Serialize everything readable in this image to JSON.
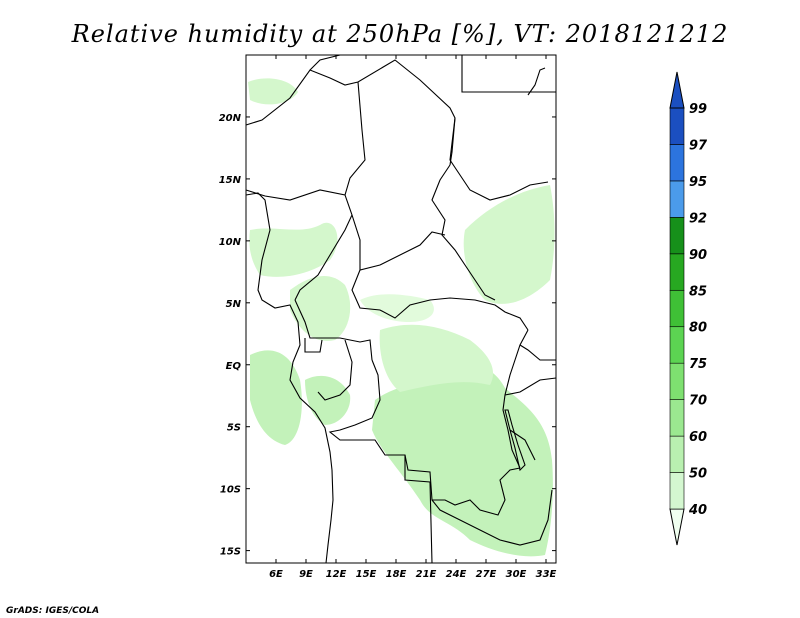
{
  "title": "Relative humidity at 250hPa [%], VT: 2018121212",
  "credit": "GrADS: IGES/COLA",
  "map": {
    "lon_range": [
      3,
      34
    ],
    "lat_range": [
      -16,
      25
    ],
    "lon_ticks": [
      "6E",
      "9E",
      "12E",
      "15E",
      "18E",
      "21E",
      "24E",
      "27E",
      "30E",
      "33E"
    ],
    "lat_ticks": [
      "20N",
      "15N",
      "10N",
      "5N",
      "EQ",
      "5S",
      "10S",
      "15S"
    ],
    "basemap": "country borders",
    "field": "relative humidity at 250hPa"
  },
  "colorbar": {
    "levels": [
      "40",
      "50",
      "60",
      "70",
      "75",
      "80",
      "85",
      "90",
      "92",
      "95",
      "97",
      "99"
    ],
    "colors": [
      "#f0fff0",
      "#d4f7d0",
      "#b9f0b0",
      "#9be890",
      "#7ee070",
      "#5cd452",
      "#3fc036",
      "#27a821",
      "#16901a",
      "#4b9bea",
      "#2c74de",
      "#1b4fc0"
    ],
    "extends": "both"
  }
}
